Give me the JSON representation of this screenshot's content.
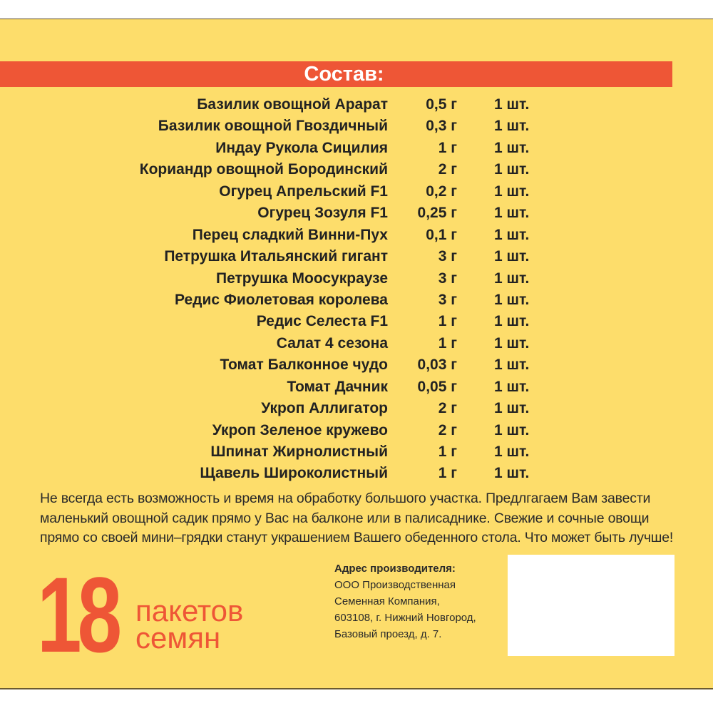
{
  "header": {
    "title": "Состав:"
  },
  "items": [
    {
      "name": "Базилик овощной Арарат",
      "grams": "0,5 г",
      "qty": "1 шт."
    },
    {
      "name": "Базилик овощной Гвоздичный",
      "grams": "0,3 г",
      "qty": "1 шт."
    },
    {
      "name": "Индау Рукола Сицилия",
      "grams": "1 г",
      "qty": "1 шт."
    },
    {
      "name": "Кориандр овощной Бородинский",
      "grams": "2 г",
      "qty": "1 шт."
    },
    {
      "name": "Огурец Апрельский F1",
      "grams": "0,2 г",
      "qty": "1 шт."
    },
    {
      "name": "Огурец Зозуля F1",
      "grams": "0,25 г",
      "qty": "1 шт."
    },
    {
      "name": "Перец сладкий Винни-Пух",
      "grams": "0,1 г",
      "qty": "1 шт."
    },
    {
      "name": "Петрушка Итальянский гигант",
      "grams": "3 г",
      "qty": "1 шт."
    },
    {
      "name": "Петрушка Моосукраузе",
      "grams": "3 г",
      "qty": "1 шт."
    },
    {
      "name": "Редис Фиолетовая королева",
      "grams": "3 г",
      "qty": "1 шт."
    },
    {
      "name": "Редис Селеста F1",
      "grams": "1 г",
      "qty": "1 шт."
    },
    {
      "name": "Салат 4 сезона",
      "grams": "1 г",
      "qty": "1 шт."
    },
    {
      "name": "Томат Балконное чудо",
      "grams": "0,03 г",
      "qty": "1 шт."
    },
    {
      "name": "Томат Дачник",
      "grams": "0,05 г",
      "qty": "1 шт."
    },
    {
      "name": "Укроп Аллигатор",
      "grams": "2 г",
      "qty": "1 шт."
    },
    {
      "name": "Укроп Зеленое кружево",
      "grams": "2 г",
      "qty": "1 шт."
    },
    {
      "name": "Шпинат Жирнолистный",
      "grams": "1 г",
      "qty": "1 шт."
    },
    {
      "name": "Щавель Широколистный",
      "grams": "1 г",
      "qty": "1 шт."
    }
  ],
  "description": "Не всегда есть возможность и время на обработку большого участка. Предлгагаем Вам завести маленький овощной садик прямо у Вас на балконе или в палисаднике. Свежие и сочные овощи прямо со своей мини–грядки станут украшением Вашего обеденного стола. Что может быть лучше!",
  "badge": {
    "number": "18",
    "line1": "пакетов",
    "line2": "семян"
  },
  "address": {
    "heading": "Адрес производителя:",
    "lines": [
      "ООО Производственная",
      "Семенная Компания,",
      "603108, г. Нижний Новгород,",
      "Базовый проезд, д. 7."
    ]
  },
  "colors": {
    "background": "#fddd6b",
    "accent": "#ee5636"
  }
}
